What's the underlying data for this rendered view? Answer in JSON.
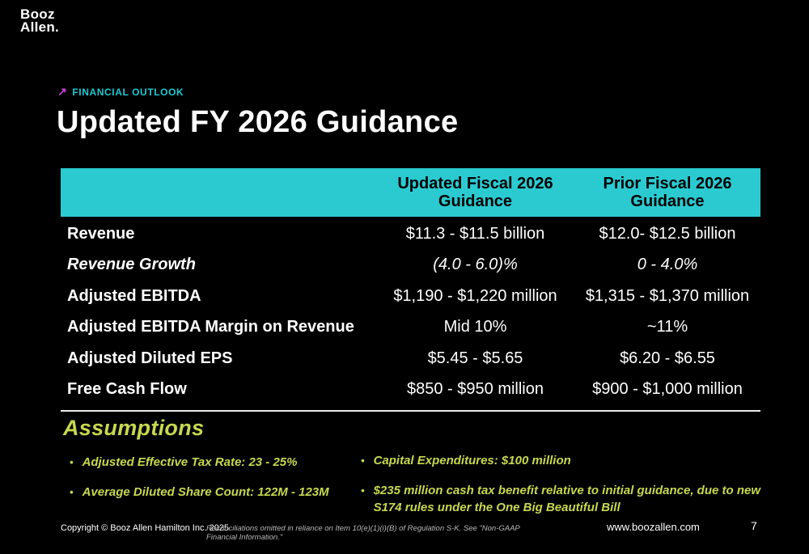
{
  "logo": {
    "line1": "Booz",
    "line2": "Allen."
  },
  "eyebrow": {
    "arrow": "↗",
    "label": "FINANCIAL OUTLOOK"
  },
  "title": "Updated FY 2026 Guidance",
  "table": {
    "columns": [
      "",
      "Updated Fiscal 2026 Guidance",
      "Prior Fiscal 2026 Guidance"
    ],
    "rows": [
      {
        "label": "Revenue",
        "updated": "$11.3 - $11.5 billion",
        "prior": "$12.0- $12.5 billion"
      },
      {
        "label": "Revenue Growth",
        "updated": "(4.0 - 6.0)%",
        "prior": "0 - 4.0%"
      },
      {
        "label": "Adjusted EBITDA",
        "updated": "$1,190 - $1,220 million",
        "prior": "$1,315 - $1,370 million"
      },
      {
        "label": "Adjusted EBITDA Margin on Revenue",
        "updated": "Mid 10%",
        "prior": "~11%"
      },
      {
        "label": "Adjusted Diluted EPS",
        "updated": "$5.45 - $5.65",
        "prior": "$6.20 - $6.55"
      },
      {
        "label": "Free Cash Flow",
        "updated": "$850 - $950 million",
        "prior": "$900 - $1,000 million"
      }
    ]
  },
  "assumptions": {
    "heading": "Assumptions",
    "bullet_glyph": "•",
    "left": [
      "Adjusted Effective Tax Rate: 23 - 25%",
      "Average Diluted Share Count: 122M - 123M"
    ],
    "right": [
      "Capital Expenditures: $100 million",
      "$235 million cash tax benefit relative to initial guidance, due to new S174 rules under the One Big Beautiful Bill"
    ]
  },
  "footer": {
    "copyright": "Copyright © Booz Allen Hamilton Inc. 2025",
    "disclaimer": "Reconciliations omitted in reliance on Item 10(e)(1)(i)(B) of Regulation S-K. See \"Non-GAAP Financial Information.\"",
    "website": "www.boozallen.com",
    "page_number": "7"
  },
  "colors": {
    "background": "#000000",
    "table_header_bg": "#2BCAD1",
    "eyebrow_text": "#1EC9D2",
    "eyebrow_arrow": "#CC3FD6",
    "accent_green": "#C8D84E",
    "body_text": "#FFFFFF"
  }
}
